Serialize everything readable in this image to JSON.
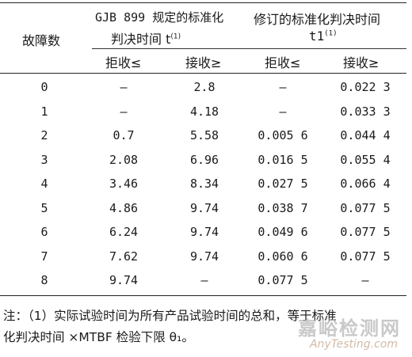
{
  "table": {
    "header": {
      "fault_count_label": "故障数",
      "gjb_group_line1": "GJB 899 规定的标准化",
      "gjb_group_line2": "判决时间 t",
      "gjb_group_sup": "(1)",
      "rev_group_line1": "修订的标准化判决时间",
      "rev_group_line2": "t1",
      "rev_group_sup": "(1)",
      "reject_label_1": "拒收≤",
      "accept_label_1": "接收≥",
      "reject_label_2": "拒收≤",
      "accept_label_2": "接收≥"
    },
    "rows": [
      {
        "faults": "0",
        "t_reject": "—",
        "t_accept": "2.8",
        "t1_reject": "—",
        "t1_accept": "0.022 3"
      },
      {
        "faults": "1",
        "t_reject": "—",
        "t_accept": "4.18",
        "t1_reject": "—",
        "t1_accept": "0.033 3"
      },
      {
        "faults": "2",
        "t_reject": "0.7",
        "t_accept": "5.58",
        "t1_reject": "0.005 6",
        "t1_accept": "0.044 4"
      },
      {
        "faults": "3",
        "t_reject": "2.08",
        "t_accept": "6.96",
        "t1_reject": "0.016 5",
        "t1_accept": "0.055 4"
      },
      {
        "faults": "4",
        "t_reject": "3.46",
        "t_accept": "8.34",
        "t1_reject": "0.027 5",
        "t1_accept": "0.066 4"
      },
      {
        "faults": "5",
        "t_reject": "4.86",
        "t_accept": "9.74",
        "t1_reject": "0.038 7",
        "t1_accept": "0.077 5"
      },
      {
        "faults": "6",
        "t_reject": "6.24",
        "t_accept": "9.74",
        "t1_reject": "0.049 6",
        "t1_accept": "0.077 5"
      },
      {
        "faults": "7",
        "t_reject": "7.62",
        "t_accept": "9.74",
        "t1_reject": "0.060 6",
        "t1_accept": "0.077 5"
      },
      {
        "faults": "8",
        "t_reject": "9.74",
        "t_accept": "—",
        "t1_reject": "0.077 5",
        "t1_accept": "—"
      }
    ]
  },
  "note": {
    "text_line1": "注：（1）实际试验时间为所有产品试验时间的总和，等于标准",
    "text_line2": "化判决时间 ×MTBF 检验下限 θ₁。"
  },
  "watermark": {
    "cn": "嘉峪检测网",
    "en": "AnyTesting.com"
  }
}
